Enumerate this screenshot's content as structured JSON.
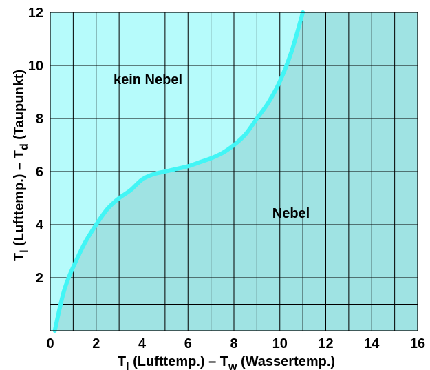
{
  "chart_data": {
    "type": "area",
    "x": [
      0.2,
      0.4,
      0.6,
      0.8,
      1.0,
      1.5,
      2.0,
      2.5,
      3.0,
      3.5,
      4.0,
      4.5,
      5.0,
      5.5,
      6.0,
      6.5,
      7.0,
      7.5,
      8.0,
      8.5,
      9.0,
      9.5,
      10.0,
      10.5,
      11.0
    ],
    "series": [
      {
        "values": [
          0.0,
          0.8,
          1.5,
          2.0,
          2.4,
          3.3,
          4.0,
          4.6,
          5.0,
          5.3,
          5.7,
          5.9,
          6.0,
          6.1,
          6.2,
          6.35,
          6.5,
          6.7,
          7.0,
          7.4,
          8.0,
          8.6,
          9.4,
          10.5,
          12.0
        ]
      }
    ],
    "xlim": [
      0,
      16
    ],
    "ylim": [
      0,
      12
    ],
    "xticks": [
      0,
      2,
      4,
      6,
      8,
      10,
      12,
      14,
      16
    ],
    "yticks": [
      2,
      4,
      6,
      8,
      10,
      12
    ],
    "xlabel": {
      "main": "T",
      "sub": "l",
      "rest": " (Lufttemp.) – T",
      "sub2": "w",
      "rest2": " (Wassertemp.)"
    },
    "ylabel": {
      "main": "T",
      "sub": "l",
      "rest": " (Lufttemp.) – T",
      "sub2": "d",
      "rest2": " (Taupunkt)"
    },
    "region_labels": {
      "above": "kein Nebel",
      "below": "Nebel"
    },
    "grid": true,
    "colors": {
      "above": "#b6fbfb",
      "below": "#9fe3e3",
      "curve": "#42f5f5",
      "grid": "#000000"
    }
  }
}
